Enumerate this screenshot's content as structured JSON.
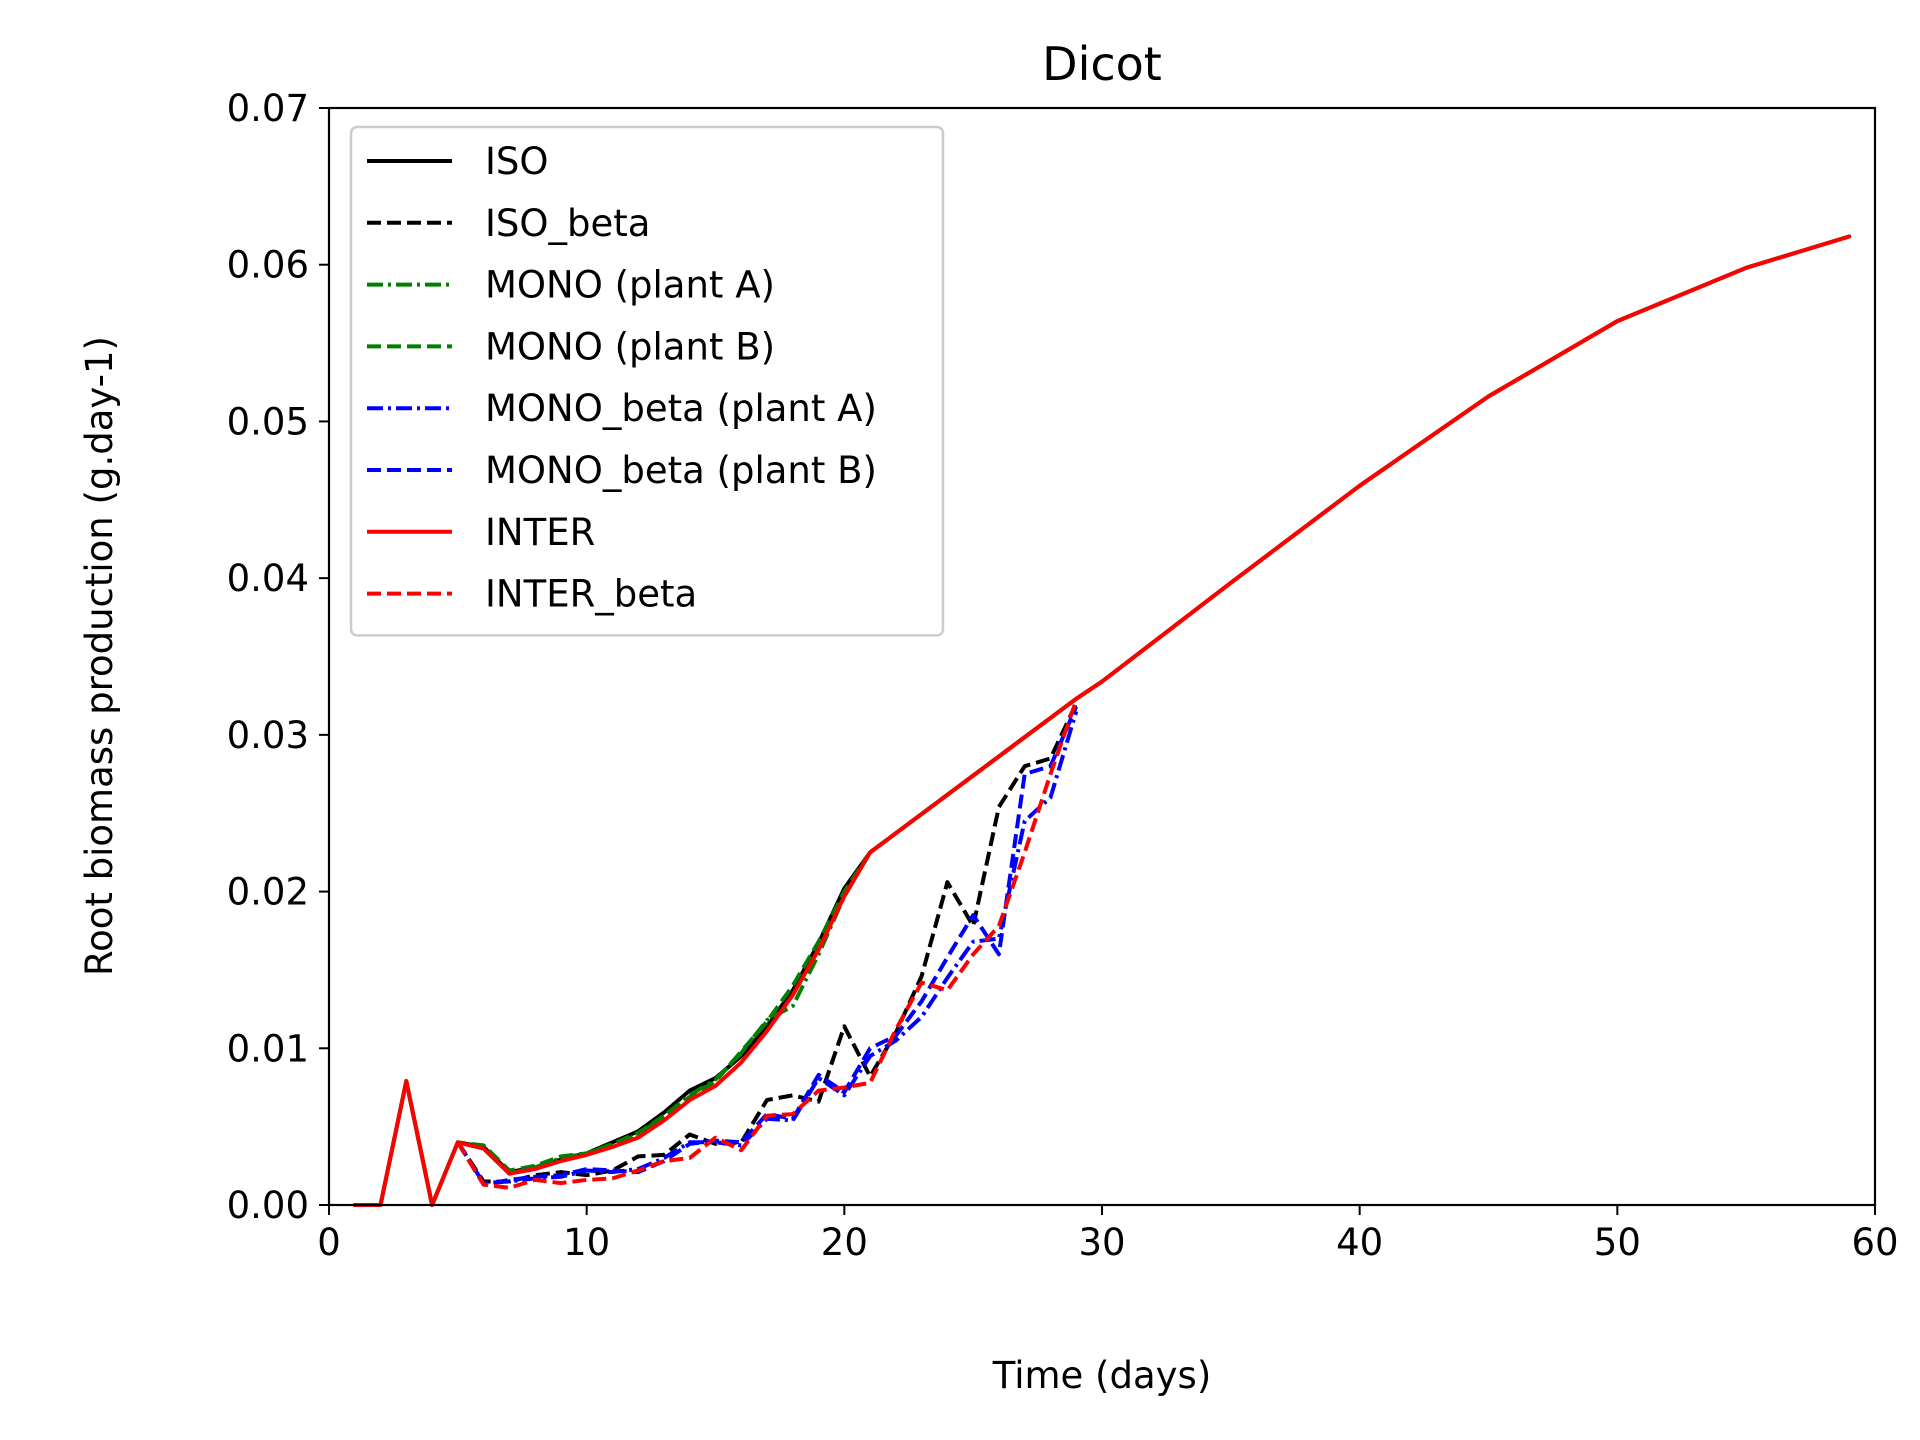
{
  "chart_data": {
    "type": "line",
    "title": "Dicot",
    "xlabel": "Time (days)",
    "ylabel": "Root biomass production (g.day-1)",
    "xlim": [
      0,
      60
    ],
    "ylim": [
      0,
      0.07
    ],
    "xticks": [
      0,
      10,
      20,
      30,
      40,
      50,
      60
    ],
    "yticks": [
      0.0,
      0.01,
      0.02,
      0.03,
      0.04,
      0.05,
      0.06,
      0.07
    ],
    "xtick_labels": [
      "0",
      "10",
      "20",
      "30",
      "40",
      "50",
      "60"
    ],
    "ytick_labels": [
      "0.00",
      "0.01",
      "0.02",
      "0.03",
      "0.04",
      "0.05",
      "0.06",
      "0.07"
    ],
    "grid": false,
    "legend_position": "upper-left",
    "series": [
      {
        "name": "ISO",
        "color": "#000000",
        "dash": "solid",
        "points": [
          [
            1,
            0
          ],
          [
            2,
            0
          ],
          [
            3,
            0.0079
          ],
          [
            4,
            0
          ],
          [
            5,
            0.004
          ],
          [
            6,
            0.0037
          ],
          [
            7,
            0.0021
          ],
          [
            8,
            0.0024
          ],
          [
            9,
            0.0029
          ],
          [
            10,
            0.0033
          ],
          [
            11,
            0.004
          ],
          [
            12,
            0.0047
          ],
          [
            13,
            0.0059
          ],
          [
            14,
            0.0073
          ],
          [
            15,
            0.0081
          ],
          [
            16,
            0.0095
          ],
          [
            17,
            0.0114
          ],
          [
            18,
            0.0137
          ],
          [
            19,
            0.0167
          ],
          [
            20,
            0.0202
          ],
          [
            21,
            0.0225
          ],
          [
            29,
            0.0323
          ],
          [
            30,
            0.0334
          ],
          [
            35,
            0.0397
          ],
          [
            40,
            0.0459
          ],
          [
            45,
            0.0516
          ],
          [
            50,
            0.0564
          ],
          [
            55,
            0.0598
          ],
          [
            59,
            0.0618
          ]
        ]
      },
      {
        "name": "ISO_beta",
        "color": "#000000",
        "dash": "dashed",
        "points": [
          [
            5,
            0.004
          ],
          [
            6,
            0.0015
          ],
          [
            7,
            0.0015
          ],
          [
            8,
            0.0019
          ],
          [
            9,
            0.0021
          ],
          [
            10,
            0.0019
          ],
          [
            11,
            0.0022
          ],
          [
            12,
            0.0031
          ],
          [
            13,
            0.0032
          ],
          [
            14,
            0.0045
          ],
          [
            15,
            0.0039
          ],
          [
            16,
            0.004
          ],
          [
            17,
            0.0067
          ],
          [
            18,
            0.007
          ],
          [
            19,
            0.0066
          ],
          [
            20,
            0.0114
          ],
          [
            21,
            0.0082
          ],
          [
            22,
            0.011
          ],
          [
            23,
            0.0146
          ],
          [
            24,
            0.0206
          ],
          [
            25,
            0.0178
          ],
          [
            26,
            0.0254
          ],
          [
            27,
            0.028
          ],
          [
            28,
            0.0285
          ],
          [
            29,
            0.032
          ]
        ]
      },
      {
        "name": "MONO (plant A)",
        "color": "#008000",
        "dash": "dashdot",
        "points": [
          [
            1,
            0
          ],
          [
            2,
            0
          ],
          [
            3,
            0.0079
          ],
          [
            4,
            0
          ],
          [
            5,
            0.004
          ],
          [
            6,
            0.0036
          ],
          [
            7,
            0.002
          ],
          [
            8,
            0.0024
          ],
          [
            9,
            0.003
          ],
          [
            10,
            0.0033
          ],
          [
            11,
            0.0038
          ],
          [
            12,
            0.0045
          ],
          [
            13,
            0.0057
          ],
          [
            14,
            0.007
          ],
          [
            15,
            0.008
          ],
          [
            16,
            0.0097
          ],
          [
            17,
            0.0118
          ],
          [
            18,
            0.0127
          ],
          [
            19,
            0.016
          ],
          [
            20,
            0.0197
          ],
          [
            21,
            0.0225
          ],
          [
            29,
            0.0323
          ]
        ]
      },
      {
        "name": "MONO (plant B)",
        "color": "#008000",
        "dash": "dashed",
        "points": [
          [
            1,
            0
          ],
          [
            2,
            0
          ],
          [
            3,
            0.0079
          ],
          [
            4,
            0
          ],
          [
            5,
            0.004
          ],
          [
            6,
            0.0038
          ],
          [
            7,
            0.0022
          ],
          [
            8,
            0.0025
          ],
          [
            9,
            0.0031
          ],
          [
            10,
            0.0033
          ],
          [
            11,
            0.0039
          ],
          [
            12,
            0.0046
          ],
          [
            13,
            0.0057
          ],
          [
            14,
            0.0069
          ],
          [
            15,
            0.0079
          ],
          [
            16,
            0.0098
          ],
          [
            17,
            0.0117
          ],
          [
            18,
            0.014
          ],
          [
            19,
            0.0168
          ],
          [
            20,
            0.02
          ],
          [
            21,
            0.0225
          ],
          [
            29,
            0.0323
          ]
        ]
      },
      {
        "name": "MONO_beta (plant A)",
        "color": "#0000ff",
        "dash": "dashdot",
        "points": [
          [
            5,
            0.004
          ],
          [
            6,
            0.0014
          ],
          [
            7,
            0.0015
          ],
          [
            8,
            0.0017
          ],
          [
            9,
            0.0018
          ],
          [
            10,
            0.0022
          ],
          [
            11,
            0.0021
          ],
          [
            12,
            0.0023
          ],
          [
            13,
            0.003
          ],
          [
            14,
            0.004
          ],
          [
            15,
            0.004
          ],
          [
            16,
            0.0038
          ],
          [
            17,
            0.0055
          ],
          [
            18,
            0.0054
          ],
          [
            19,
            0.0081
          ],
          [
            20,
            0.007
          ],
          [
            21,
            0.0095
          ],
          [
            22,
            0.0105
          ],
          [
            23,
            0.012
          ],
          [
            24,
            0.0145
          ],
          [
            25,
            0.0168
          ],
          [
            26,
            0.017
          ],
          [
            27,
            0.0245
          ],
          [
            28,
            0.026
          ],
          [
            29,
            0.0315
          ]
        ]
      },
      {
        "name": "MONO_beta (plant B)",
        "color": "#0000ff",
        "dash": "dashed",
        "points": [
          [
            5,
            0.004
          ],
          [
            6,
            0.0013
          ],
          [
            7,
            0.0016
          ],
          [
            8,
            0.0018
          ],
          [
            9,
            0.0019
          ],
          [
            10,
            0.0023
          ],
          [
            11,
            0.0022
          ],
          [
            12,
            0.0021
          ],
          [
            13,
            0.0028
          ],
          [
            14,
            0.0039
          ],
          [
            15,
            0.0041
          ],
          [
            16,
            0.004
          ],
          [
            17,
            0.0058
          ],
          [
            18,
            0.0055
          ],
          [
            19,
            0.0083
          ],
          [
            20,
            0.0072
          ],
          [
            21,
            0.01
          ],
          [
            22,
            0.0108
          ],
          [
            23,
            0.013
          ],
          [
            24,
            0.0158
          ],
          [
            25,
            0.0185
          ],
          [
            26,
            0.016
          ],
          [
            27,
            0.0275
          ],
          [
            28,
            0.028
          ],
          [
            29,
            0.0318
          ]
        ]
      },
      {
        "name": "INTER",
        "color": "#ff0000",
        "dash": "solid",
        "points": [
          [
            1,
            0
          ],
          [
            2,
            0
          ],
          [
            3,
            0.0079
          ],
          [
            4,
            0
          ],
          [
            5,
            0.004
          ],
          [
            6,
            0.0036
          ],
          [
            7,
            0.002
          ],
          [
            8,
            0.0023
          ],
          [
            9,
            0.0028
          ],
          [
            10,
            0.0032
          ],
          [
            11,
            0.0037
          ],
          [
            12,
            0.0043
          ],
          [
            13,
            0.0054
          ],
          [
            14,
            0.0067
          ],
          [
            15,
            0.0076
          ],
          [
            16,
            0.0091
          ],
          [
            17,
            0.0111
          ],
          [
            18,
            0.0134
          ],
          [
            19,
            0.0163
          ],
          [
            20,
            0.0197
          ],
          [
            21,
            0.0225
          ],
          [
            29,
            0.0323
          ],
          [
            30,
            0.0334
          ],
          [
            35,
            0.0397
          ],
          [
            40,
            0.0459
          ],
          [
            45,
            0.0516
          ],
          [
            50,
            0.0564
          ],
          [
            55,
            0.0598
          ],
          [
            59,
            0.0618
          ]
        ]
      },
      {
        "name": "INTER_beta",
        "color": "#ff0000",
        "dash": "dashed",
        "points": [
          [
            5,
            0.004
          ],
          [
            6,
            0.0013
          ],
          [
            7,
            0.0011
          ],
          [
            8,
            0.0016
          ],
          [
            9,
            0.0014
          ],
          [
            10,
            0.0016
          ],
          [
            11,
            0.0017
          ],
          [
            12,
            0.0022
          ],
          [
            13,
            0.0028
          ],
          [
            14,
            0.003
          ],
          [
            15,
            0.0043
          ],
          [
            16,
            0.0035
          ],
          [
            17,
            0.0057
          ],
          [
            18,
            0.0058
          ],
          [
            19,
            0.0073
          ],
          [
            20,
            0.0075
          ],
          [
            21,
            0.0078
          ],
          [
            22,
            0.0112
          ],
          [
            23,
            0.0142
          ],
          [
            24,
            0.0137
          ],
          [
            25,
            0.016
          ],
          [
            26,
            0.0178
          ],
          [
            27,
            0.0225
          ],
          [
            28,
            0.0275
          ],
          [
            29,
            0.0322
          ]
        ]
      }
    ]
  }
}
